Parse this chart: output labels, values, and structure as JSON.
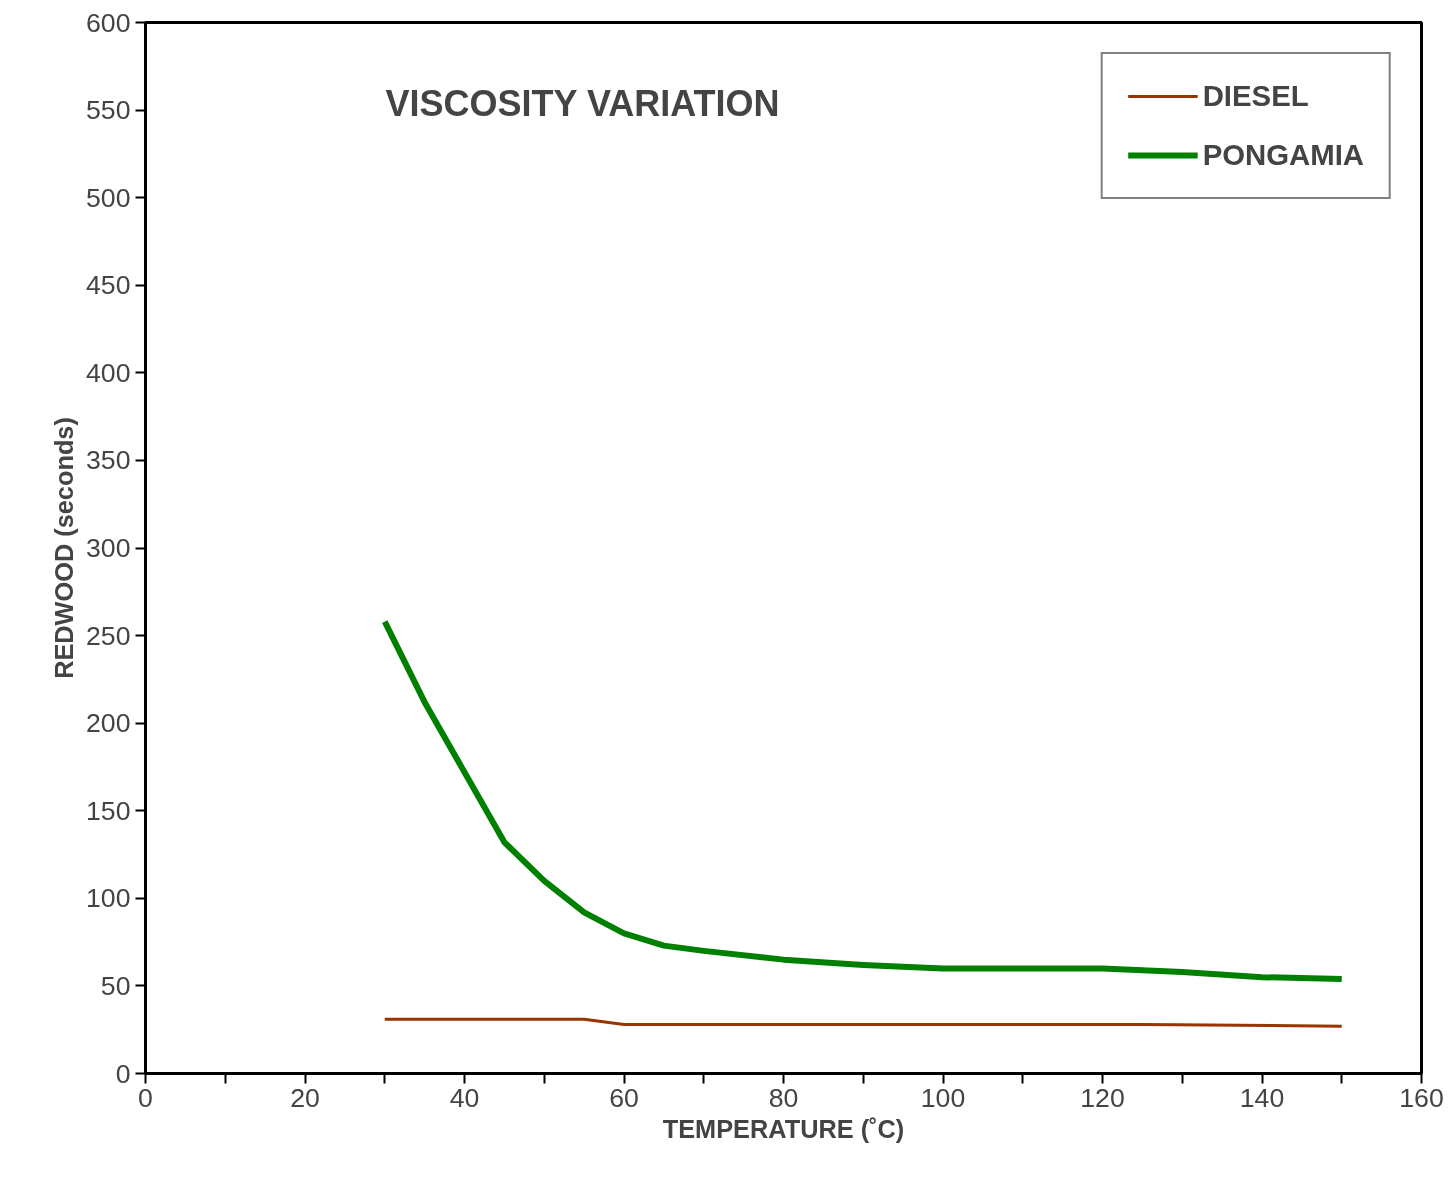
{
  "chart_data": {
    "type": "line",
    "title": "VISCOSITY VARIATION",
    "xlabel": "TEMPERATURE (˚C)",
    "ylabel": "REDWOOD (seconds)",
    "xlim": [
      0,
      160
    ],
    "ylim": [
      0,
      600
    ],
    "xticks": [
      0,
      {
        "value": 10,
        "label": null
      },
      20,
      {
        "value": 30,
        "label": null
      },
      40,
      {
        "value": 50,
        "label": null
      },
      60,
      {
        "value": 70,
        "label": null
      },
      80,
      {
        "value": 90,
        "label": null
      },
      100,
      {
        "value": 110,
        "label": null
      },
      120,
      {
        "value": 130,
        "label": null
      },
      140,
      {
        "value": 150,
        "label": null
      },
      160
    ],
    "yticks": [
      0,
      50,
      100,
      150,
      200,
      250,
      300,
      350,
      400,
      450,
      500,
      550,
      600
    ],
    "grid": false,
    "legend": "top right",
    "marker": "none",
    "line_style": "solid",
    "series": [
      {
        "name": "DIESEL",
        "color": "#993300",
        "x": [
          30,
          55,
          60,
          125,
          150
        ],
        "values": [
          31,
          31,
          28,
          28,
          27
        ]
      },
      {
        "name": "PONGAMIA",
        "color": "#008000",
        "x": [
          30,
          35,
          40,
          45,
          50,
          55,
          60,
          65,
          70,
          80,
          90,
          100,
          120,
          125,
          130,
          140,
          150
        ],
        "values": [
          258,
          212,
          172,
          132,
          110,
          92,
          80,
          73,
          70,
          65,
          62,
          60,
          60,
          59,
          58,
          55,
          54
        ]
      }
    ]
  }
}
